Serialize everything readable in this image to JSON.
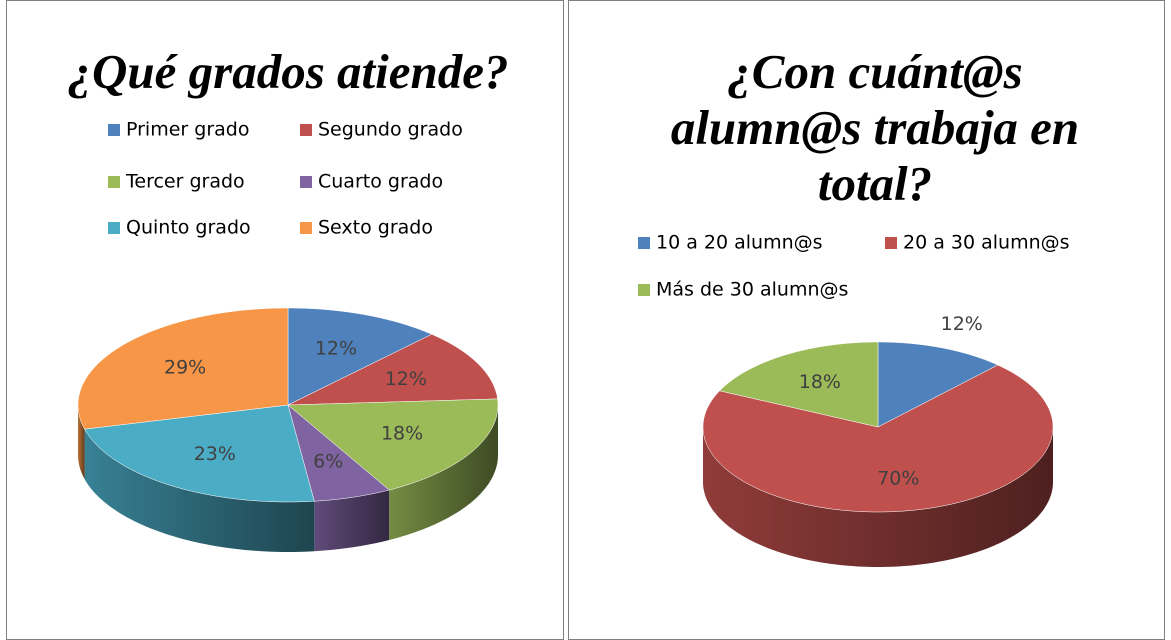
{
  "chart_data": [
    {
      "type": "pie",
      "title": "¿Qué grados atiende?",
      "categories": [
        "Primer grado",
        "Segundo grado",
        "Tercer grado",
        "Cuarto grado",
        "Quinto grado",
        "Sexto grado"
      ],
      "values": [
        12,
        12,
        18,
        6,
        23,
        29
      ],
      "value_labels": [
        "12%",
        "12%",
        "18%",
        "6%",
        "23%",
        "29%"
      ],
      "colors": [
        "#4f81bd",
        "#c0504d",
        "#9bbb59",
        "#8064a2",
        "#4bacc6",
        "#f79646"
      ]
    },
    {
      "type": "pie",
      "title": "¿Con cuánt@s alumn@s trabaja en total?",
      "categories": [
        "10 a 20 alumn@s",
        "20 a 30 alumn@s",
        "Más de 30 alumn@s"
      ],
      "values": [
        12,
        70,
        18
      ],
      "value_labels": [
        "12%",
        "70%",
        "18%"
      ],
      "colors": [
        "#4f81bd",
        "#c0504d",
        "#9bbb59"
      ]
    }
  ]
}
